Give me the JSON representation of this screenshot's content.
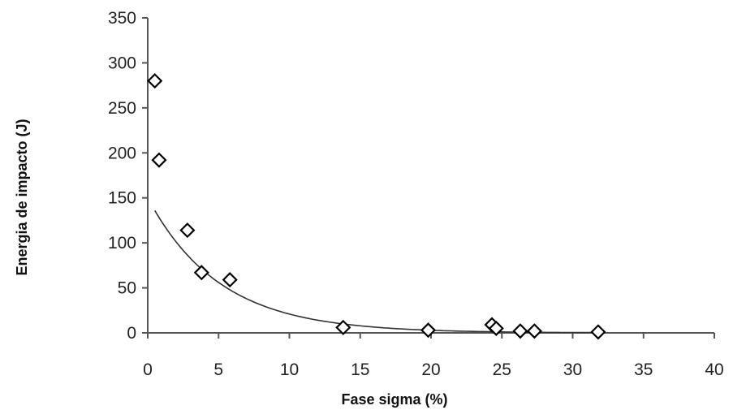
{
  "chart_data": {
    "type": "scatter",
    "title": "",
    "xlabel": "Fase sigma (%)",
    "ylabel": "Energia de impacto (J)",
    "xlim": [
      0,
      40
    ],
    "ylim": [
      0,
      350
    ],
    "x_ticks": [
      "0",
      "5",
      "10",
      "15",
      "20",
      "25",
      "30",
      "35",
      "40"
    ],
    "y_ticks": [
      "0",
      "50",
      "100",
      "150",
      "200",
      "250",
      "300",
      "350"
    ],
    "grid": false,
    "legend": "none",
    "marker": "diamond-open",
    "series": [
      {
        "points": [
          {
            "x": 0.5,
            "y": 280
          },
          {
            "x": 0.8,
            "y": 192
          },
          {
            "x": 2.8,
            "y": 114
          },
          {
            "x": 3.8,
            "y": 67
          },
          {
            "x": 5.8,
            "y": 59
          },
          {
            "x": 13.8,
            "y": 6
          },
          {
            "x": 19.8,
            "y": 3
          },
          {
            "x": 24.3,
            "y": 9
          },
          {
            "x": 24.6,
            "y": 5
          },
          {
            "x": 26.3,
            "y": 2
          },
          {
            "x": 27.3,
            "y": 2
          },
          {
            "x": 31.8,
            "y": 1
          }
        ]
      }
    ],
    "trendline": {
      "type": "exponential",
      "a": 150,
      "b": -0.197,
      "x_range": [
        0.5,
        31.8
      ]
    },
    "colors": {
      "marker_stroke": "#000000",
      "trendline": "#333333",
      "axis": "#555555"
    }
  }
}
